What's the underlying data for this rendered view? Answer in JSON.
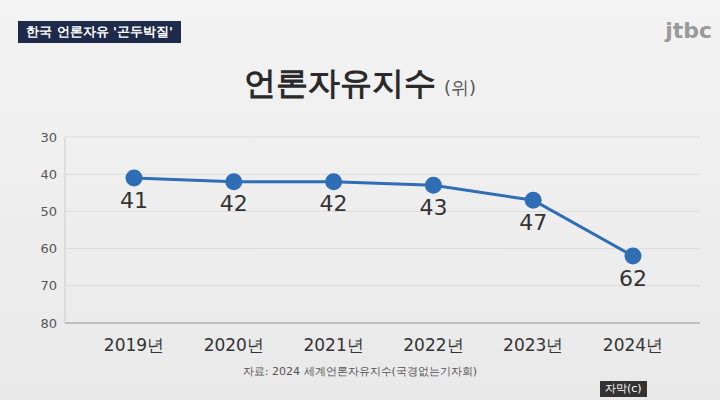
{
  "header": "한국 언론자유 '곤두박질'",
  "logo": "jtbc",
  "caption_badge": "자막(c)",
  "chart_data": {
    "type": "line",
    "title": "언론자유지수",
    "ylabel": "(위)",
    "categories": [
      "2019년",
      "2020년",
      "2021년",
      "2022년",
      "2023년",
      "2024년"
    ],
    "values": [
      41,
      42,
      42,
      43,
      47,
      62
    ],
    "color": "#2f6db5",
    "marker": "circle",
    "ylim": [
      30,
      80
    ],
    "yticks": [
      30,
      40,
      50,
      60,
      70,
      80
    ],
    "grid": true,
    "data_labels": true,
    "source": "자료: 2024 세계언론자유지수(국경없는기자회)"
  }
}
